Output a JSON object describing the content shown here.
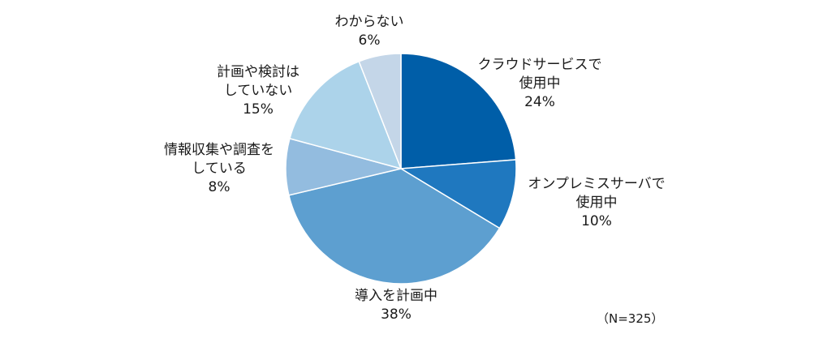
{
  "chart_data": {
    "type": "pie",
    "title": "",
    "sample_note": "（N=325）",
    "start": "12 o'clock",
    "direction": "clockwise",
    "slices": [
      {
        "label_lines": [
          "クラウドサービスで",
          "使用中"
        ],
        "percent_text": "24%",
        "value": 24,
        "color": "#005ea8"
      },
      {
        "label_lines": [
          "オンプレミスサーバで",
          "使用中"
        ],
        "percent_text": "10%",
        "value": 10,
        "color": "#1f78bf"
      },
      {
        "label_lines": [
          "導入を計画中"
        ],
        "percent_text": "38%",
        "value": 38,
        "color": "#5d9fd0"
      },
      {
        "label_lines": [
          "情報収集や調査を",
          "している"
        ],
        "percent_text": "8%",
        "value": 8,
        "color": "#93bcdf"
      },
      {
        "label_lines": [
          "計画や検討は",
          "していない"
        ],
        "percent_text": "15%",
        "value": 15,
        "color": "#acd3ea"
      },
      {
        "label_lines": [
          "わからない"
        ],
        "percent_text": "6%",
        "value": 6,
        "color": "#c4d6e8"
      }
    ]
  }
}
